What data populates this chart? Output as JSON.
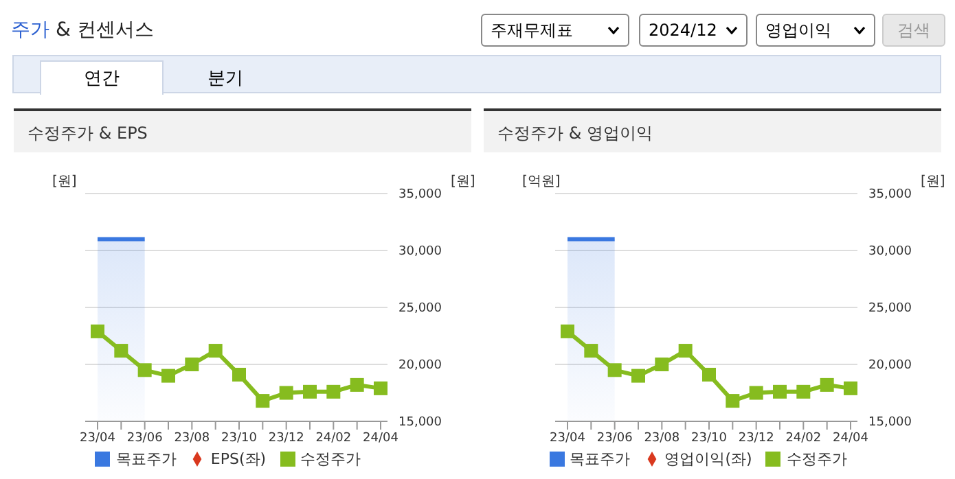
{
  "chart_data": [
    {
      "type": "other",
      "title": "주가 & 컨센서스",
      "annotations": [
        "주재무제표",
        "2024/12",
        "영업이익",
        "검색",
        "연간",
        "분기"
      ]
    },
    {
      "type": "line",
      "title": "수정주가 & EPS",
      "ylabel": "[원]",
      "y2label": "[원]",
      "categories": [
        "23/04",
        null,
        "23/06",
        null,
        "23/08",
        null,
        "23/10",
        null,
        "23/12",
        null,
        "24/02",
        null,
        "24/04"
      ],
      "series": [
        {
          "name": "목표주가",
          "type": "area",
          "axis": "y2",
          "color": "#3a78e0",
          "values": [
            31000,
            31000,
            31000,
            null,
            null,
            null,
            null,
            null,
            null,
            null,
            null,
            null,
            null
          ]
        },
        {
          "name": "EPS(좌)",
          "type": "line",
          "axis": "y",
          "color": "#d9381e",
          "marker": "diamond",
          "values": [
            null,
            null,
            null,
            null,
            null,
            null,
            null,
            null,
            null,
            null,
            null,
            null,
            null
          ]
        },
        {
          "name": "수정주가",
          "type": "line",
          "axis": "y2",
          "color": "#86bc1f",
          "marker": "square",
          "values": [
            22900,
            21200,
            19500,
            19000,
            20000,
            21200,
            19100,
            16800,
            17500,
            17600,
            17600,
            18200,
            17900
          ]
        }
      ],
      "y2lim": [
        15000,
        35000
      ],
      "y2ticks": [
        {
          "value": 15000,
          "label": "15,000"
        },
        {
          "value": 20000,
          "label": "20,000"
        },
        {
          "value": 25000,
          "label": "25,000"
        },
        {
          "value": 30000,
          "label": "30,000"
        },
        {
          "value": 35000,
          "label": "35,000"
        }
      ],
      "grid": "y",
      "legend": "bottom"
    },
    {
      "type": "line",
      "title": "수정주가 & 영업이익",
      "ylabel": "[억원]",
      "y2label": "[원]",
      "categories": [
        "23/04",
        null,
        "23/06",
        null,
        "23/08",
        null,
        "23/10",
        null,
        "23/12",
        null,
        "24/02",
        null,
        "24/04"
      ],
      "series": [
        {
          "name": "목표주가",
          "type": "area",
          "axis": "y2",
          "color": "#3a78e0",
          "values": [
            31000,
            31000,
            31000,
            null,
            null,
            null,
            null,
            null,
            null,
            null,
            null,
            null,
            null
          ]
        },
        {
          "name": "영업이익(좌)",
          "type": "line",
          "axis": "y",
          "color": "#d9381e",
          "marker": "diamond",
          "values": [
            null,
            null,
            null,
            null,
            null,
            null,
            null,
            null,
            null,
            null,
            null,
            null,
            null
          ]
        },
        {
          "name": "수정주가",
          "type": "line",
          "axis": "y2",
          "color": "#86bc1f",
          "marker": "square",
          "values": [
            22900,
            21200,
            19500,
            19000,
            20000,
            21200,
            19100,
            16800,
            17500,
            17600,
            17600,
            18200,
            17900
          ]
        }
      ],
      "y2lim": [
        15000,
        35000
      ],
      "y2ticks": [
        {
          "value": 15000,
          "label": "15,000"
        },
        {
          "value": 20000,
          "label": "20,000"
        },
        {
          "value": 25000,
          "label": "25,000"
        },
        {
          "value": 30000,
          "label": "30,000"
        },
        {
          "value": 35000,
          "label": "35,000"
        }
      ],
      "grid": "y",
      "legend": "bottom"
    }
  ]
}
